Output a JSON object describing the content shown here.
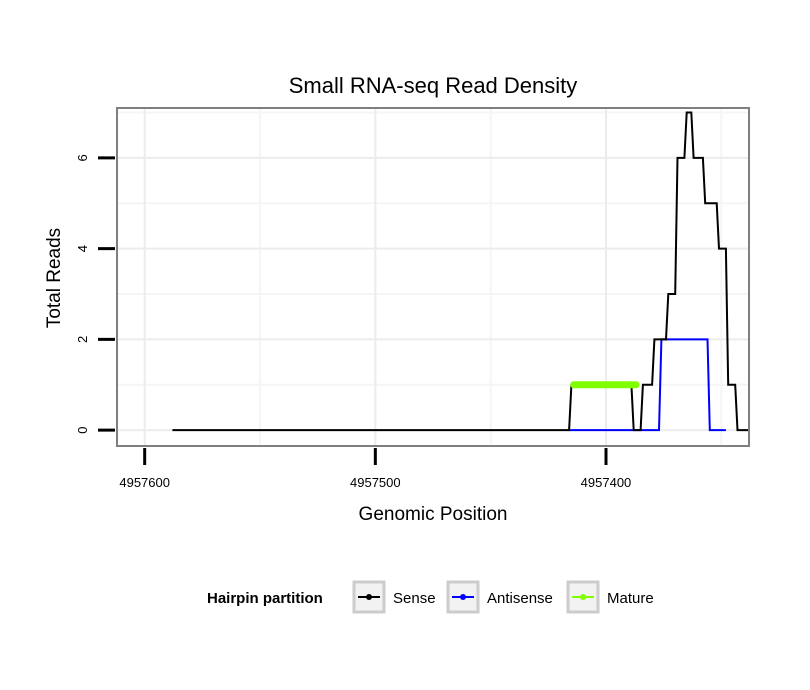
{
  "chart_data": {
    "type": "line",
    "title": "Small RNA-seq Read Density",
    "xlabel": "Genomic Position",
    "ylabel": "Total Reads",
    "x_reversed": true,
    "xlim": [
      4957612,
      4957338
    ],
    "ylim": [
      -0.35,
      7.1
    ],
    "x_ticks": [
      4957600,
      4957500,
      4957400
    ],
    "x_tick_labels": [
      "4957600",
      "4957500",
      "4957400"
    ],
    "x_minor_gridlines": [
      4957550,
      4957450,
      4957350
    ],
    "y_ticks": [
      0,
      2,
      4,
      6
    ],
    "y_tick_labels": [
      "0",
      "2",
      "4",
      "6"
    ],
    "y_minor_gridlines": [
      1,
      3,
      5,
      7
    ],
    "grid": true,
    "legend": {
      "title": "Hairpin partition",
      "position": "bottom",
      "entries": [
        {
          "label": "Sense",
          "color": "#000000"
        },
        {
          "label": "Antisense",
          "color": "#0000ff"
        },
        {
          "label": "Mature",
          "color": "#7fff00"
        }
      ]
    },
    "series": [
      {
        "name": "Sense",
        "color": "#000000",
        "x": [
          4957588,
          4957416,
          4957415,
          4957389,
          4957388,
          4957385,
          4957384,
          4957380,
          4957379,
          4957374,
          4957373,
          4957370,
          4957369,
          4957366,
          4957365,
          4957363,
          4957362,
          4957358,
          4957357,
          4957352,
          4957351,
          4957348,
          4957347,
          4957344,
          4957343,
          4957338
        ],
        "y": [
          0,
          0,
          1,
          1,
          0,
          0,
          1,
          1,
          2,
          2,
          3,
          3,
          6,
          6,
          7,
          7,
          6,
          6,
          5,
          5,
          4,
          4,
          1,
          1,
          0,
          0
        ]
      },
      {
        "name": "Antisense",
        "color": "#0000ff",
        "x": [
          4957416,
          4957377,
          4957376,
          4957356,
          4957355,
          4957348
        ],
        "y": [
          0,
          0,
          2,
          2,
          0,
          0
        ]
      },
      {
        "name": "Mature",
        "color": "#7fff00",
        "x": [
          4957414,
          4957387
        ],
        "y": [
          1,
          1
        ]
      }
    ]
  }
}
